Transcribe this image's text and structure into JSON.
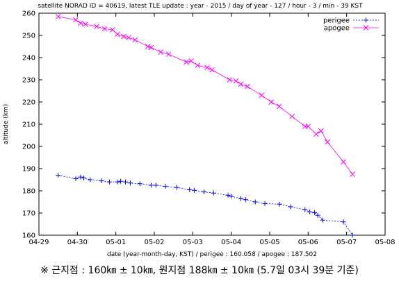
{
  "chart_data": {
    "type": "line",
    "title": "satellite NORAD ID = 40619, latest TLE update : year - 2015 / day of year - 127 / hour - 3 / min - 39 KST",
    "xlabel": "date (year-month-day, KST) / perigee : 160.058 / apogee : 187.502",
    "ylabel": "altitude (km)",
    "xlim": [
      "2015-04-29",
      "2015-05-08"
    ],
    "ylim": [
      160,
      260
    ],
    "x_ticks": [
      "04-29",
      "04-30",
      "05-01",
      "05-02",
      "05-03",
      "05-04",
      "05-05",
      "05-06",
      "05-07",
      "05-08"
    ],
    "y_ticks": [
      160,
      170,
      180,
      190,
      200,
      210,
      220,
      230,
      240,
      250,
      260
    ],
    "grid": false,
    "legend_position": "top-right",
    "series": [
      {
        "name": "perigee",
        "color": "#0000ff",
        "marker": "plus",
        "x": [
          "2015-04-29T12:00",
          "2015-04-29T23:00",
          "2015-04-30T02:00",
          "2015-04-30T04:00",
          "2015-04-30T08:00",
          "2015-04-30T15:00",
          "2015-04-30T20:00",
          "2015-05-01T01:00",
          "2015-05-01T03:00",
          "2015-05-01T06:00",
          "2015-05-01T09:00",
          "2015-05-01T15:00",
          "2015-05-01T22:00",
          "2015-05-02T01:00",
          "2015-05-02T07:00",
          "2015-05-02T14:00",
          "2015-05-02T22:00",
          "2015-05-03T01:00",
          "2015-05-03T07:00",
          "2015-05-03T13:00",
          "2015-05-03T22:00",
          "2015-05-04T00:00",
          "2015-05-04T06:00",
          "2015-05-04T09:00",
          "2015-05-04T15:00",
          "2015-05-04T21:00",
          "2015-05-05T06:00",
          "2015-05-05T13:00",
          "2015-05-05T22:00",
          "2015-05-06T01:00",
          "2015-05-06T04:00",
          "2015-05-06T06:00",
          "2015-05-06T09:00",
          "2015-05-06T22:00",
          "2015-05-07T03:39"
        ],
        "y": [
          187,
          185.5,
          186.2,
          185.8,
          185,
          184.5,
          184,
          184,
          184.3,
          184,
          183.5,
          183.2,
          182.5,
          182.5,
          182,
          181.5,
          180.5,
          180.2,
          179.5,
          179,
          178,
          177.5,
          176.5,
          176,
          175,
          174.2,
          174,
          172.8,
          171.5,
          170.5,
          170.2,
          169,
          166.8,
          166,
          160.058
        ]
      },
      {
        "name": "apogee",
        "color": "#ff00ff",
        "marker": "cross",
        "x": [
          "2015-04-29T12:00",
          "2015-04-29T23:00",
          "2015-04-30T02:00",
          "2015-04-30T05:00",
          "2015-04-30T12:00",
          "2015-04-30T17:00",
          "2015-04-30T22:00",
          "2015-05-01T01:00",
          "2015-05-01T05:00",
          "2015-05-01T08:00",
          "2015-05-01T12:00",
          "2015-05-01T20:00",
          "2015-05-01T22:00",
          "2015-05-02T04:00",
          "2015-05-02T09:00",
          "2015-05-02T20:00",
          "2015-05-02T23:00",
          "2015-05-03T03:00",
          "2015-05-03T09:00",
          "2015-05-03T12:00",
          "2015-05-03T23:00",
          "2015-05-04T03:00",
          "2015-05-04T06:00",
          "2015-05-04T10:00",
          "2015-05-04T19:00",
          "2015-05-05T01:00",
          "2015-05-05T06:00",
          "2015-05-05T14:00",
          "2015-05-05T22:00",
          "2015-05-06T00:00",
          "2015-05-06T05:00",
          "2015-05-06T08:00",
          "2015-05-06T12:00",
          "2015-05-06T22:00",
          "2015-05-07T03:39"
        ],
        "y": [
          258.5,
          257,
          255.5,
          255,
          254,
          253,
          252.5,
          250.5,
          249.5,
          249,
          248,
          245,
          244.5,
          242.5,
          241.5,
          238,
          238.5,
          236.5,
          235.5,
          234.5,
          230,
          229.5,
          228,
          227,
          223,
          220,
          218,
          213.5,
          209,
          209,
          205.5,
          207,
          202,
          193,
          187.502
        ]
      }
    ]
  },
  "footnote": "※ 근지점 : 160㎞ ± 10㎞, 원지점 188㎞ ± 10㎞ (5.7일 03시 39분 기준)"
}
